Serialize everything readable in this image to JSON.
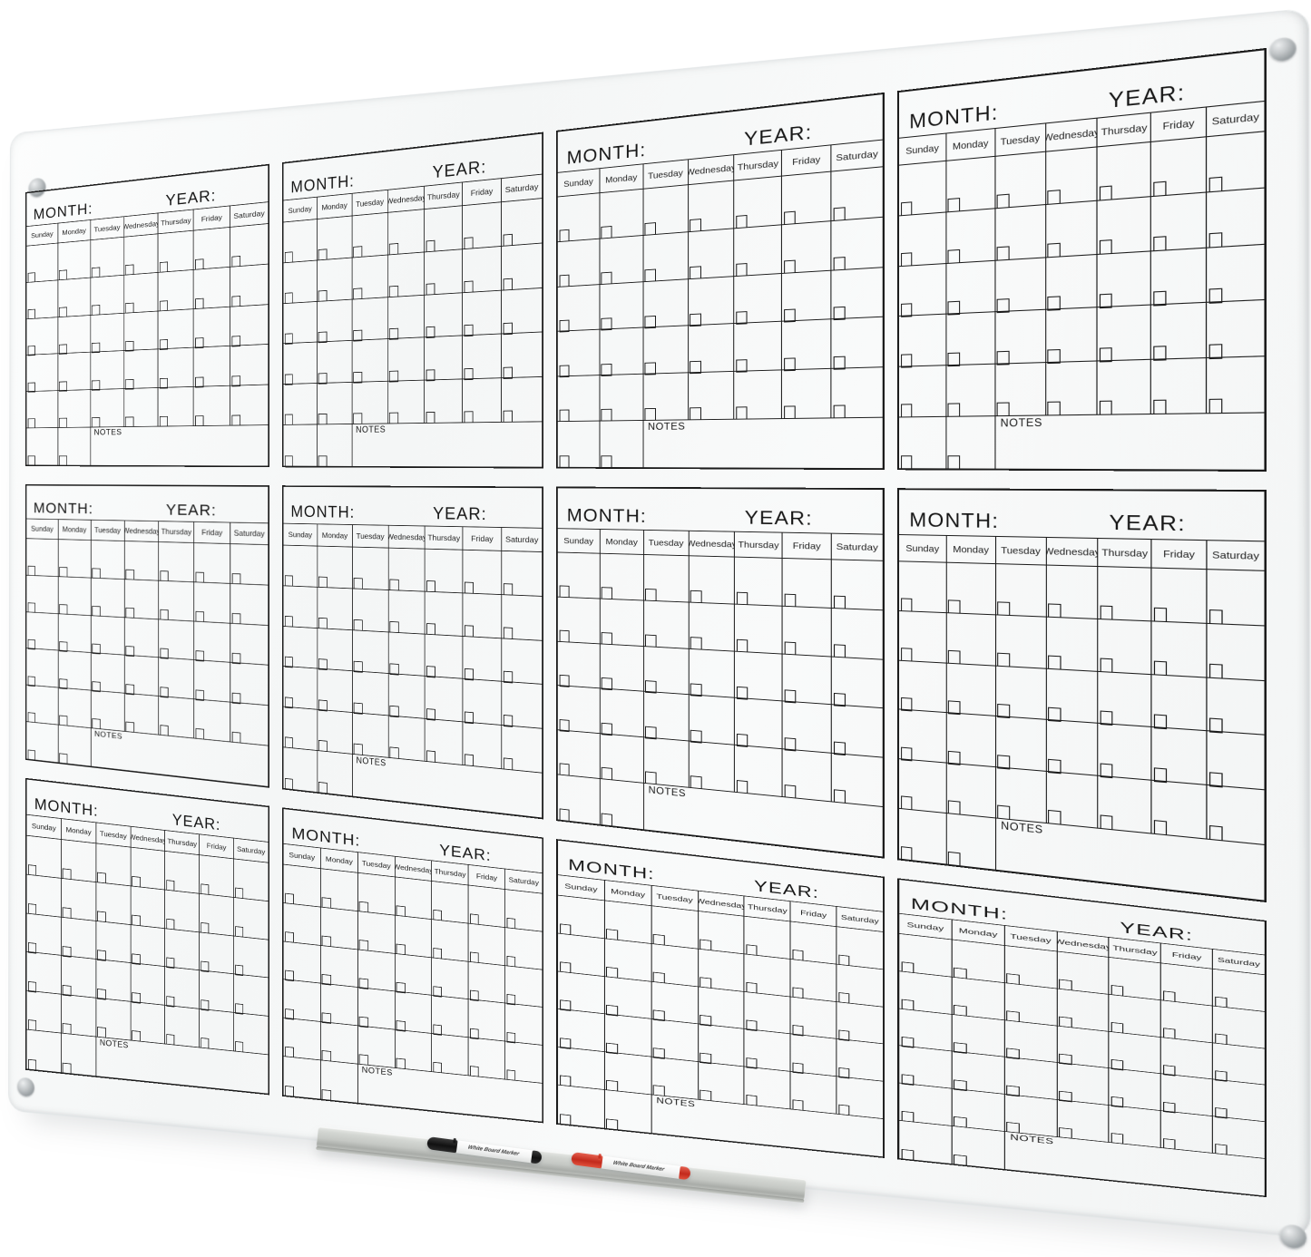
{
  "product": {
    "description": "Glass dry-erase 12-month wall calendar whiteboard with marker tray",
    "calendar_count": 12
  },
  "board": {
    "calendar": {
      "month_label": "MONTH:",
      "year_label": "YEAR:",
      "day_names": [
        "Sunday",
        "Monday",
        "Tuesday",
        "Wednesday",
        "Thursday",
        "Friday",
        "Saturday"
      ],
      "notes_label": "NOTES",
      "day_rows": 5,
      "bottom_row_day_cells": 2
    },
    "colors": {
      "grid_line": "#1b1b1b",
      "glass": "#f6f8f8",
      "tray": "#c5c8c4",
      "marker_black": "#1c1c1c",
      "marker_red": "#c22a1c"
    },
    "screw_count": 4
  },
  "markers": [
    {
      "name": "black dry-erase marker",
      "label": "White Board Marker"
    },
    {
      "name": "red dry-erase marker",
      "label": "White Board Marker"
    }
  ]
}
